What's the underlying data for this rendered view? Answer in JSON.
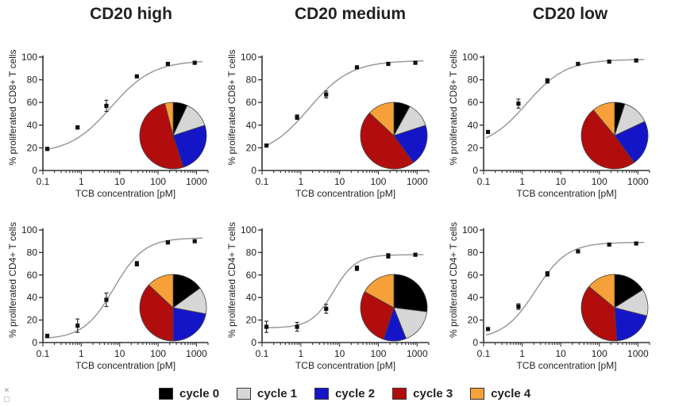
{
  "figure": {
    "column_titles": [
      "CD20 high",
      "CD20 medium",
      "CD20 low"
    ],
    "legend": [
      {
        "label": "cycle 0",
        "color": "#000000"
      },
      {
        "label": "cycle 1",
        "color": "#d6d6d6"
      },
      {
        "label": "cycle 2",
        "color": "#1515c8"
      },
      {
        "label": "cycle 3",
        "color": "#b10d0d"
      },
      {
        "label": "cycle 4",
        "color": "#f5a038"
      }
    ],
    "corner_icon": "close-icon"
  },
  "chart_data": [
    {
      "type": "scatter",
      "title": "CD20 high",
      "xscale": "log",
      "xlabel": "TCB concentration [pM]",
      "ylabel": "% proliferated CD8+ T cells",
      "xlim": [
        0.1,
        2000
      ],
      "ylim": [
        0,
        100
      ],
      "xticks": [
        0.1,
        1,
        10,
        100,
        1000
      ],
      "xtick_labels": [
        "0.1",
        "1",
        "10",
        "100",
        "1000"
      ],
      "yticks": [
        0,
        20,
        40,
        60,
        80,
        100
      ],
      "ytick_labels": [
        "0",
        "20",
        "40",
        "60",
        "80",
        "100"
      ],
      "x": [
        0.13,
        0.8,
        4.5,
        28,
        180,
        900
      ],
      "y": [
        19,
        38,
        57,
        83,
        94,
        95
      ],
      "yerr": [
        1.5,
        1.5,
        5,
        1,
        1,
        1
      ],
      "fit": {
        "bottom": 15,
        "top": 97,
        "ec50": 6,
        "hill": 0.8
      },
      "pie": {
        "labels": [
          "cycle 0",
          "cycle 1",
          "cycle 2",
          "cycle 3",
          "cycle 4"
        ],
        "values": [
          7,
          13,
          25,
          51,
          4
        ]
      }
    },
    {
      "type": "scatter",
      "title": "CD20 medium",
      "xscale": "log",
      "xlabel": "TCB concentration [pM]",
      "ylabel": "% proliferated CD8+ T cells",
      "xlim": [
        0.1,
        2000
      ],
      "ylim": [
        0,
        100
      ],
      "xticks": [
        0.1,
        1,
        10,
        100,
        1000
      ],
      "xtick_labels": [
        "0.1",
        "1",
        "10",
        "100",
        "1000"
      ],
      "yticks": [
        0,
        20,
        40,
        60,
        80,
        100
      ],
      "ytick_labels": [
        "0",
        "20",
        "40",
        "60",
        "80",
        "100"
      ],
      "x": [
        0.13,
        0.8,
        4.5,
        28,
        180,
        900
      ],
      "y": [
        22,
        47,
        67,
        91,
        94,
        95
      ],
      "yerr": [
        1,
        2,
        3,
        1,
        1,
        1
      ],
      "fit": {
        "bottom": 12,
        "top": 97,
        "ec50": 1.6,
        "hill": 0.8
      },
      "pie": {
        "labels": [
          "cycle 0",
          "cycle 1",
          "cycle 2",
          "cycle 3",
          "cycle 4"
        ],
        "values": [
          8,
          12,
          20,
          47,
          13
        ]
      }
    },
    {
      "type": "scatter",
      "title": "CD20 low",
      "xscale": "log",
      "xlabel": "TCB concentration [pM]",
      "ylabel": "% proliferated CD8+ T cells",
      "xlim": [
        0.1,
        2000
      ],
      "ylim": [
        0,
        100
      ],
      "xticks": [
        0.1,
        1,
        10,
        100,
        1000
      ],
      "xtick_labels": [
        "0.1",
        "1",
        "10",
        "100",
        "1000"
      ],
      "yticks": [
        0,
        20,
        40,
        60,
        80,
        100
      ],
      "ytick_labels": [
        "0",
        "20",
        "40",
        "60",
        "80",
        "100"
      ],
      "x": [
        0.13,
        0.8,
        4.5,
        28,
        180,
        900
      ],
      "y": [
        34,
        59,
        79,
        94,
        96,
        97
      ],
      "yerr": [
        1,
        4,
        2,
        1,
        1,
        1
      ],
      "fit": {
        "bottom": 20,
        "top": 98,
        "ec50": 1.3,
        "hill": 0.85
      },
      "pie": {
        "labels": [
          "cycle 0",
          "cycle 1",
          "cycle 2",
          "cycle 3",
          "cycle 4"
        ],
        "values": [
          5,
          13,
          22,
          49,
          11
        ]
      }
    },
    {
      "type": "scatter",
      "title": "CD20 high",
      "xscale": "log",
      "xlabel": "TCB concentration [pM]",
      "ylabel": "% proliferated CD4+ T cells",
      "xlim": [
        0.1,
        2000
      ],
      "ylim": [
        0,
        100
      ],
      "xticks": [
        0.1,
        1,
        10,
        100,
        1000
      ],
      "xtick_labels": [
        "0.1",
        "1",
        "10",
        "100",
        "1000"
      ],
      "yticks": [
        0,
        20,
        40,
        60,
        80,
        100
      ],
      "ytick_labels": [
        "0",
        "20",
        "40",
        "60",
        "80",
        "100"
      ],
      "x": [
        0.13,
        0.8,
        4.5,
        28,
        180,
        900
      ],
      "y": [
        6,
        15,
        38,
        70,
        89,
        90
      ],
      "yerr": [
        1,
        6,
        6,
        2,
        1.5,
        1
      ],
      "fit": {
        "bottom": 3,
        "top": 93,
        "ec50": 7,
        "hill": 1.1
      },
      "pie": {
        "labels": [
          "cycle 0",
          "cycle 1",
          "cycle 2",
          "cycle 3",
          "cycle 4"
        ],
        "values": [
          15,
          13,
          22,
          37,
          13
        ]
      }
    },
    {
      "type": "scatter",
      "title": "CD20 medium",
      "xscale": "log",
      "xlabel": "TCB concentration [pM]",
      "ylabel": "% proliferated CD4+ T cells",
      "xlim": [
        0.1,
        2000
      ],
      "ylim": [
        0,
        100
      ],
      "xticks": [
        0.1,
        1,
        10,
        100,
        1000
      ],
      "xtick_labels": [
        "0.1",
        "1",
        "10",
        "100",
        "1000"
      ],
      "yticks": [
        0,
        20,
        40,
        60,
        80,
        100
      ],
      "ytick_labels": [
        "0",
        "20",
        "40",
        "60",
        "80",
        "100"
      ],
      "x": [
        0.13,
        0.8,
        4.5,
        28,
        180,
        900
      ],
      "y": [
        14,
        14,
        30,
        66,
        77,
        78
      ],
      "yerr": [
        5,
        4,
        4,
        2,
        2,
        1
      ],
      "fit": {
        "bottom": 13,
        "top": 78,
        "ec50": 7,
        "hill": 1.5
      },
      "pie": {
        "labels": [
          "cycle 0",
          "cycle 1",
          "cycle 2",
          "cycle 3",
          "cycle 4"
        ],
        "values": [
          27,
          17,
          11,
          28,
          17
        ]
      }
    },
    {
      "type": "scatter",
      "title": "CD20 low",
      "xscale": "log",
      "xlabel": "TCB concentration [pM]",
      "ylabel": "% proliferated CD4+ T cells",
      "xlim": [
        0.1,
        2000
      ],
      "ylim": [
        0,
        100
      ],
      "xticks": [
        0.1,
        1,
        10,
        100,
        1000
      ],
      "xtick_labels": [
        "0.1",
        "1",
        "10",
        "100",
        "1000"
      ],
      "yticks": [
        0,
        20,
        40,
        60,
        80,
        100
      ],
      "ytick_labels": [
        "0",
        "20",
        "40",
        "60",
        "80",
        "100"
      ],
      "x": [
        0.13,
        0.8,
        4.5,
        28,
        180,
        900
      ],
      "y": [
        12,
        32,
        61,
        81,
        87,
        88
      ],
      "yerr": [
        1,
        2.5,
        2,
        1,
        1,
        1
      ],
      "fit": {
        "bottom": 3,
        "top": 89,
        "ec50": 2.2,
        "hill": 1.05
      },
      "pie": {
        "labels": [
          "cycle 0",
          "cycle 1",
          "cycle 2",
          "cycle 3",
          "cycle 4"
        ],
        "values": [
          16,
          13,
          20,
          37,
          14
        ]
      }
    }
  ]
}
